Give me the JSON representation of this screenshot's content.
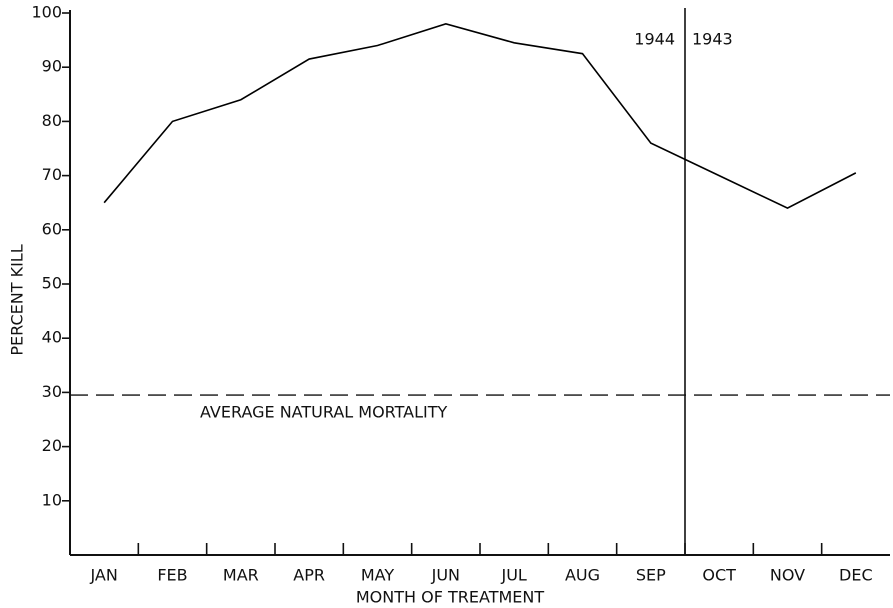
{
  "chart_data": {
    "type": "line",
    "x_label": "MONTH OF TREATMENT",
    "y_label": "PERCENT KILL",
    "categories": [
      "JAN",
      "FEB",
      "MAR",
      "APR",
      "MAY",
      "JUN",
      "JUL",
      "AUG",
      "SEP",
      "OCT",
      "NOV",
      "DEC"
    ],
    "series": [
      {
        "name": "Percent kill",
        "color": "#000000",
        "values": [
          65,
          80,
          84,
          91.5,
          94,
          98,
          94.5,
          92.5,
          76,
          70,
          64,
          70.5
        ]
      }
    ],
    "ylim": [
      0,
      100
    ],
    "yticks": [
      10,
      20,
      30,
      40,
      50,
      60,
      70,
      80,
      90,
      100
    ],
    "reference_line": {
      "value": 29.5,
      "label": "AVERAGE NATURAL MORTALITY"
    },
    "year_labels": [
      "1944",
      "1943"
    ]
  }
}
